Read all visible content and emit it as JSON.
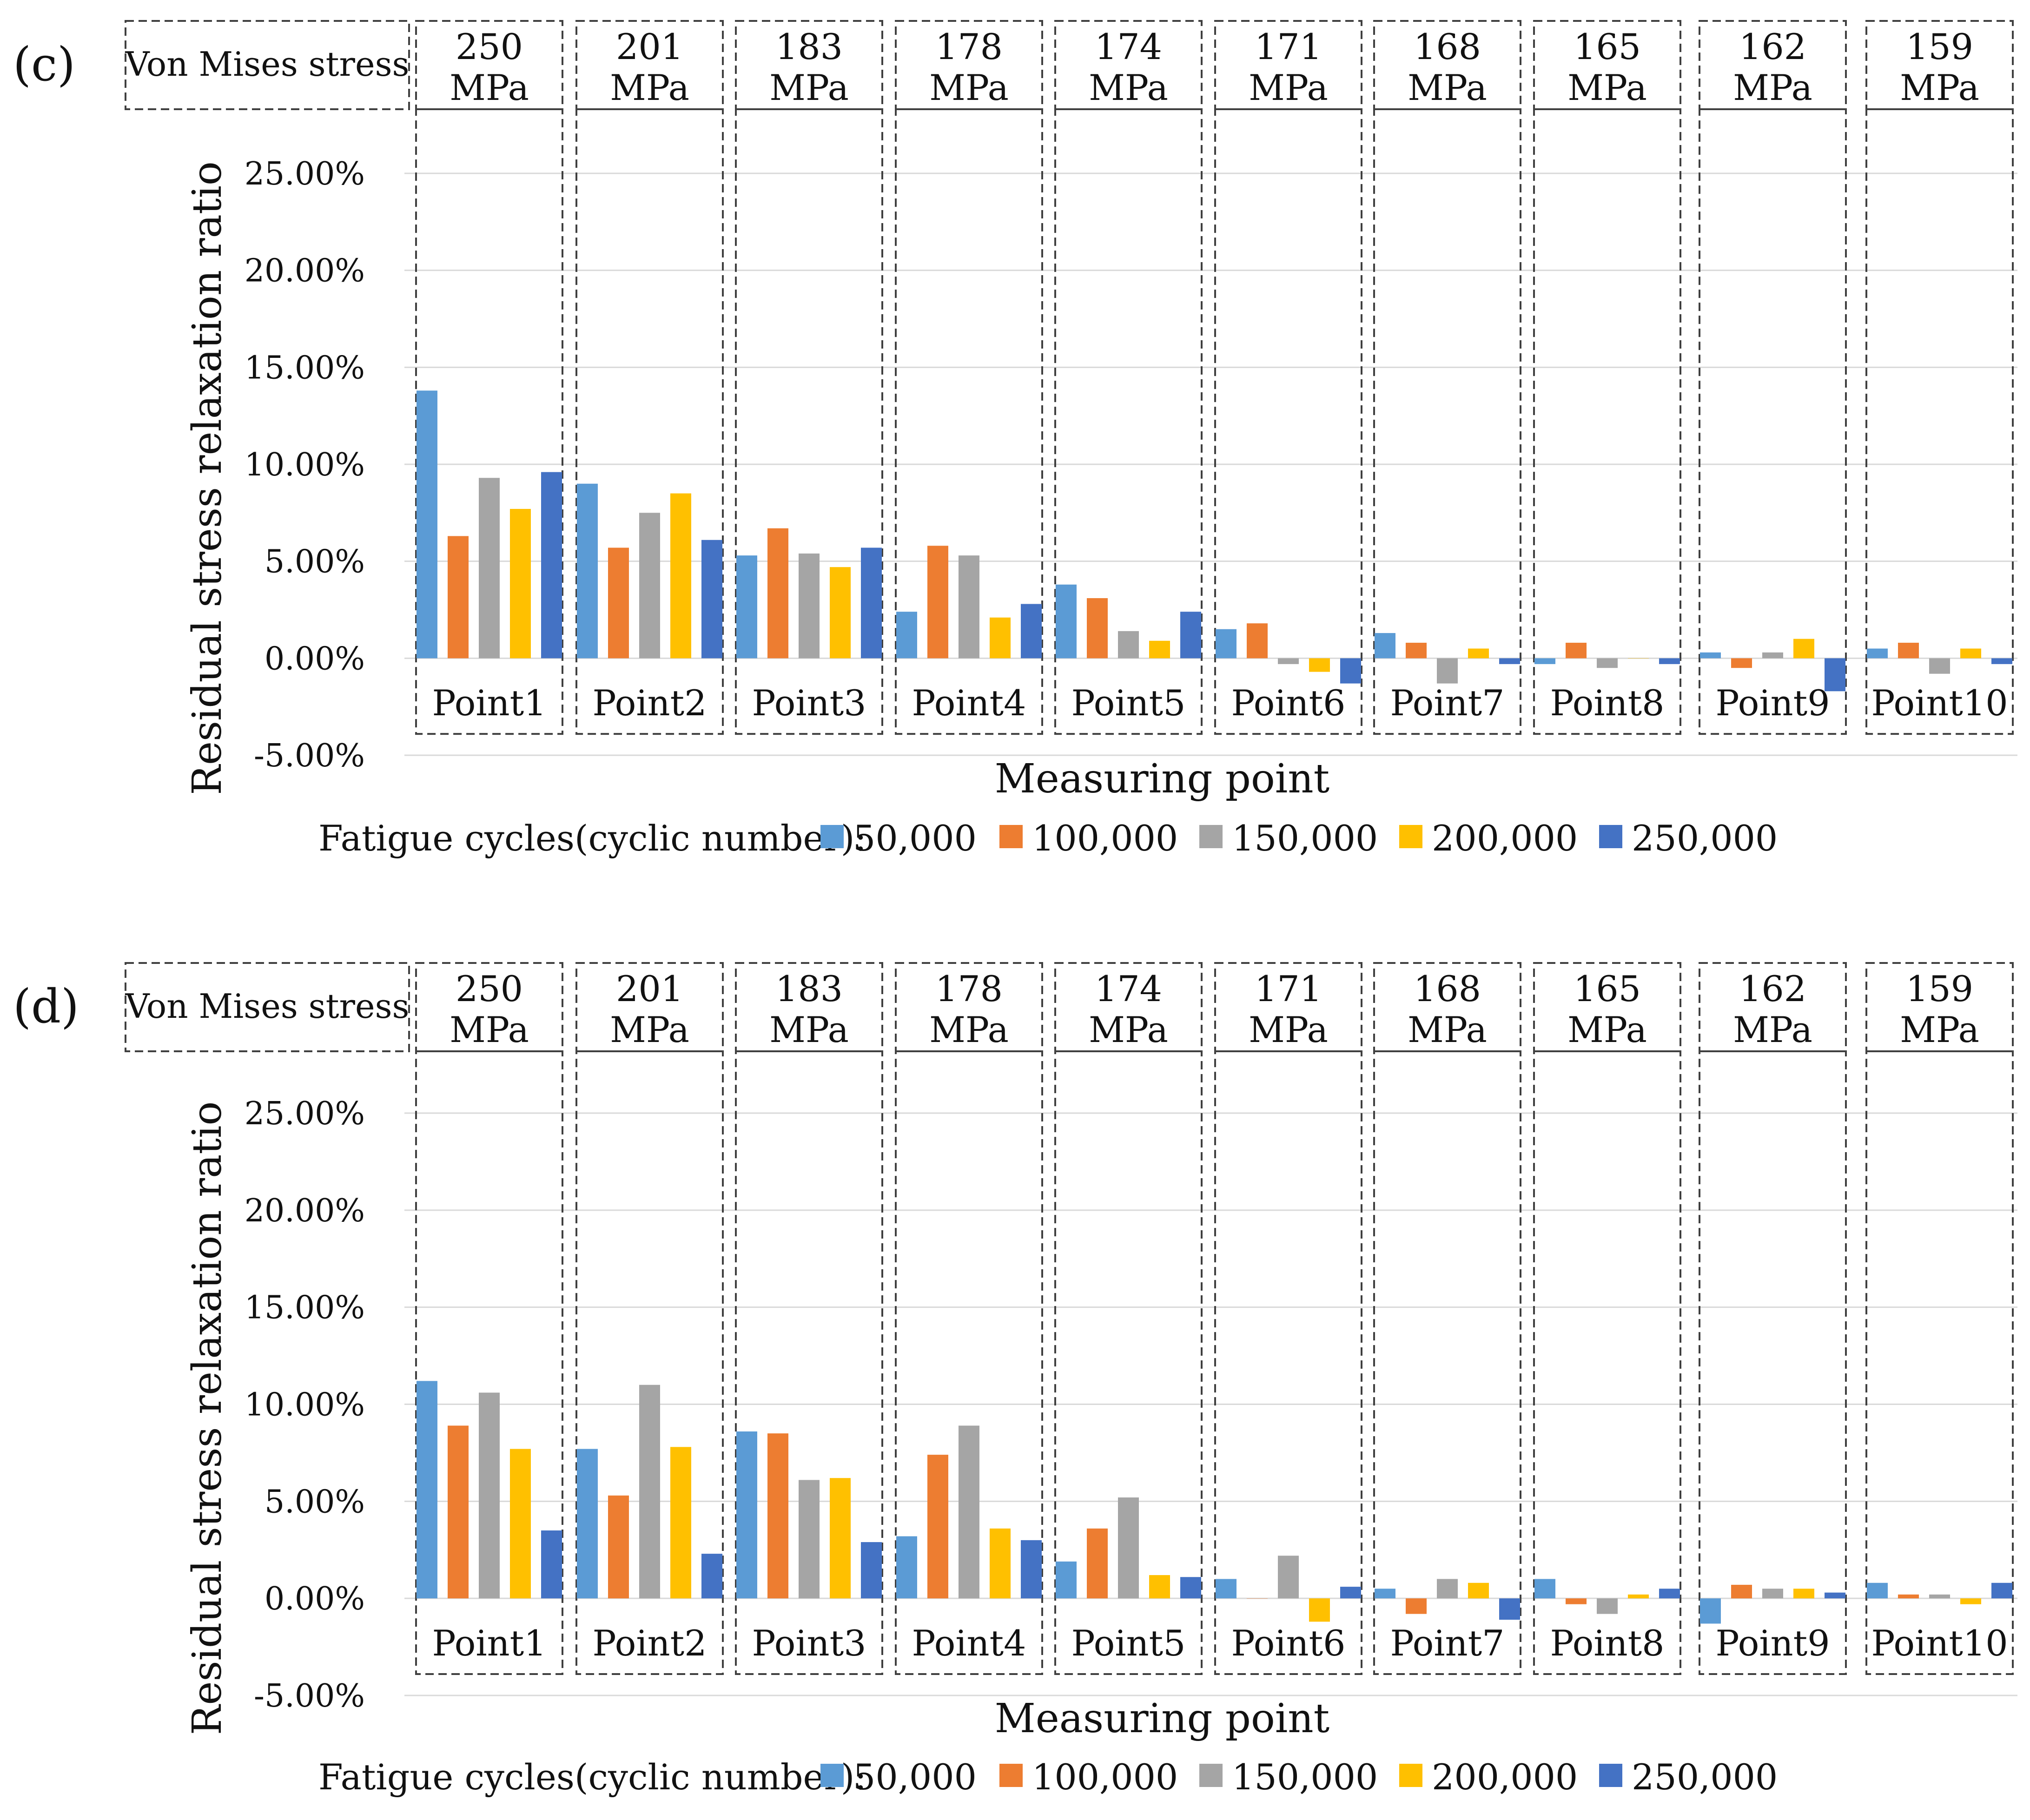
{
  "chart_data": [
    {
      "type": "bar",
      "panel_label": "(c)",
      "header_label": "Von Mises stress",
      "stress_values": [
        "250",
        "201",
        "183",
        "178",
        "174",
        "171",
        "168",
        "165",
        "162",
        "159"
      ],
      "stress_unit": "MPa",
      "categories": [
        "Point1",
        "Point2",
        "Point3",
        "Point4",
        "Point5",
        "Point6",
        "Point7",
        "Point8",
        "Point9",
        "Point10"
      ],
      "xlabel": "Measuring point",
      "ylabel": "Residual stress relaxation ratio",
      "ylim": [
        -5,
        25
      ],
      "yticks": [
        -5,
        0,
        5,
        10,
        15,
        20,
        25
      ],
      "ytick_labels": [
        "-5.00%",
        "0.00%",
        "5.00%",
        "10.00%",
        "15.00%",
        "20.00%",
        "25.00%"
      ],
      "legend_title": "Fatigue cycles(cyclic number):",
      "legend_position": "bottom",
      "grid": true,
      "series": [
        {
          "name": "50,000",
          "values": [
            13.8,
            9.0,
            5.3,
            2.4,
            3.8,
            1.5,
            1.3,
            -0.3,
            0.3,
            0.5
          ]
        },
        {
          "name": "100,000",
          "values": [
            6.3,
            5.7,
            6.7,
            5.8,
            3.1,
            1.8,
            0.8,
            0.8,
            -0.5,
            0.8
          ]
        },
        {
          "name": "150,000",
          "values": [
            9.3,
            7.5,
            5.4,
            5.3,
            1.4,
            -0.3,
            -1.3,
            -0.5,
            0.3,
            -0.8
          ]
        },
        {
          "name": "200,000",
          "values": [
            7.7,
            8.5,
            4.7,
            2.1,
            0.9,
            -0.7,
            0.5,
            0.0,
            1.0,
            0.5
          ]
        },
        {
          "name": "250,000",
          "values": [
            9.6,
            6.1,
            5.7,
            2.8,
            2.4,
            -1.3,
            -0.3,
            -0.3,
            -1.7,
            -0.3
          ]
        }
      ]
    },
    {
      "type": "bar",
      "panel_label": "(d)",
      "header_label": "Von Mises stress",
      "stress_values": [
        "250",
        "201",
        "183",
        "178",
        "174",
        "171",
        "168",
        "165",
        "162",
        "159"
      ],
      "stress_unit": "MPa",
      "categories": [
        "Point1",
        "Point2",
        "Point3",
        "Point4",
        "Point5",
        "Point6",
        "Point7",
        "Point8",
        "Point9",
        "Point10"
      ],
      "xlabel": "Measuring point",
      "ylabel": "Residual stress relaxation ratio",
      "ylim": [
        -5,
        25
      ],
      "yticks": [
        -5,
        0,
        5,
        10,
        15,
        20,
        25
      ],
      "ytick_labels": [
        "-5.00%",
        "0.00%",
        "5.00%",
        "10.00%",
        "15.00%",
        "20.00%",
        "25.00%"
      ],
      "legend_title": "Fatigue cycles(cyclic number):",
      "legend_position": "bottom",
      "grid": true,
      "series": [
        {
          "name": "50,000",
          "values": [
            11.2,
            7.7,
            8.6,
            3.2,
            1.9,
            1.0,
            0.5,
            1.0,
            -1.3,
            0.8
          ]
        },
        {
          "name": "100,000",
          "values": [
            8.9,
            5.3,
            8.5,
            7.4,
            3.6,
            0.0,
            -0.8,
            -0.3,
            0.7,
            0.2
          ]
        },
        {
          "name": "150,000",
          "values": [
            10.6,
            11.0,
            6.1,
            8.9,
            5.2,
            2.2,
            1.0,
            -0.8,
            0.5,
            0.2
          ]
        },
        {
          "name": "200,000",
          "values": [
            7.7,
            7.8,
            6.2,
            3.6,
            1.2,
            -1.2,
            0.8,
            0.2,
            0.5,
            -0.3
          ]
        },
        {
          "name": "250,000",
          "values": [
            3.5,
            2.3,
            2.9,
            3.0,
            1.1,
            0.6,
            -1.1,
            0.5,
            0.3,
            0.8
          ]
        }
      ]
    }
  ],
  "colors": {
    "series": [
      "#5B9BD5",
      "#ED7D31",
      "#A5A5A5",
      "#FFC000",
      "#4472C4"
    ],
    "grid": "#D9D9D9",
    "dash": "#404040"
  }
}
